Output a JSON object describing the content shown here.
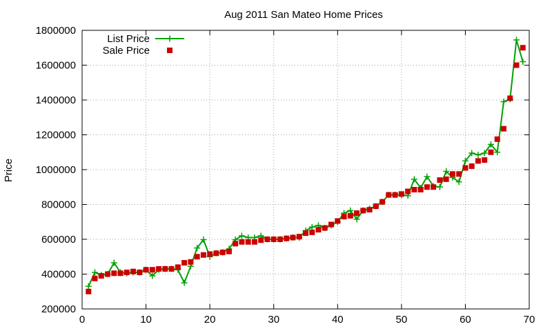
{
  "chart_data": {
    "type": "line",
    "title": "Aug 2011 San Mateo Home Prices",
    "xlabel": "",
    "ylabel": "Price",
    "xlim": [
      0,
      70
    ],
    "ylim": [
      200000,
      1800000
    ],
    "xticks": [
      0,
      10,
      20,
      30,
      40,
      50,
      60,
      70
    ],
    "yticks": [
      200000,
      400000,
      600000,
      800000,
      1000000,
      1200000,
      1400000,
      1600000,
      1800000
    ],
    "grid": true,
    "legend": "top-left",
    "series": [
      {
        "name": "List Price",
        "style": "lines+crosses",
        "color": "#00a000",
        "x": [
          1,
          2,
          3,
          4,
          5,
          6,
          7,
          8,
          9,
          10,
          11,
          12,
          13,
          14,
          15,
          16,
          17,
          18,
          19,
          20,
          21,
          22,
          23,
          24,
          25,
          26,
          27,
          28,
          29,
          30,
          31,
          32,
          33,
          34,
          35,
          36,
          37,
          38,
          39,
          40,
          41,
          42,
          43,
          44,
          45,
          46,
          47,
          48,
          49,
          50,
          51,
          52,
          53,
          54,
          55,
          56,
          57,
          58,
          59,
          60,
          61,
          62,
          63,
          64,
          65,
          66,
          67,
          68,
          69
        ],
        "values": [
          330000,
          410000,
          395000,
          400000,
          465000,
          410000,
          405000,
          410000,
          410000,
          425000,
          390000,
          425000,
          430000,
          430000,
          425000,
          350000,
          445000,
          550000,
          598000,
          500000,
          520000,
          525000,
          545000,
          598000,
          620000,
          610000,
          610000,
          620000,
          600000,
          600000,
          600000,
          605000,
          610000,
          610000,
          650000,
          670000,
          680000,
          665000,
          680000,
          700000,
          750000,
          765000,
          715000,
          765000,
          775000,
          790000,
          815000,
          855000,
          855000,
          855000,
          850000,
          945000,
          895000,
          960000,
          905000,
          900000,
          990000,
          955000,
          930000,
          1050000,
          1095000,
          1085000,
          1095000,
          1145000,
          1100000,
          1390000,
          1405000,
          1745000,
          1620000
        ]
      },
      {
        "name": "Sale Price",
        "style": "points",
        "color": "#cc0000",
        "x": [
          1,
          2,
          3,
          4,
          5,
          6,
          7,
          8,
          9,
          10,
          11,
          12,
          13,
          14,
          15,
          16,
          17,
          18,
          19,
          20,
          21,
          22,
          23,
          24,
          25,
          26,
          27,
          28,
          29,
          30,
          31,
          32,
          33,
          34,
          35,
          36,
          37,
          38,
          39,
          40,
          41,
          42,
          43,
          44,
          45,
          46,
          47,
          48,
          49,
          50,
          51,
          52,
          53,
          54,
          55,
          56,
          57,
          58,
          59,
          60,
          61,
          62,
          63,
          64,
          65,
          66,
          67,
          68,
          69
        ],
        "values": [
          300000,
          375000,
          390000,
          400000,
          405000,
          405000,
          410000,
          415000,
          410000,
          425000,
          425000,
          430000,
          430000,
          430000,
          440000,
          465000,
          470000,
          500000,
          510000,
          515000,
          520000,
          525000,
          530000,
          575000,
          585000,
          585000,
          585000,
          595000,
          600000,
          600000,
          600000,
          605000,
          610000,
          615000,
          635000,
          640000,
          655000,
          665000,
          685000,
          705000,
          730000,
          735000,
          750000,
          765000,
          770000,
          790000,
          815000,
          855000,
          855000,
          860000,
          875000,
          885000,
          885000,
          900000,
          900000,
          940000,
          945000,
          975000,
          975000,
          1010000,
          1020000,
          1050000,
          1055000,
          1100000,
          1175000,
          1235000,
          1410000,
          1600000,
          1700000
        ]
      }
    ]
  }
}
